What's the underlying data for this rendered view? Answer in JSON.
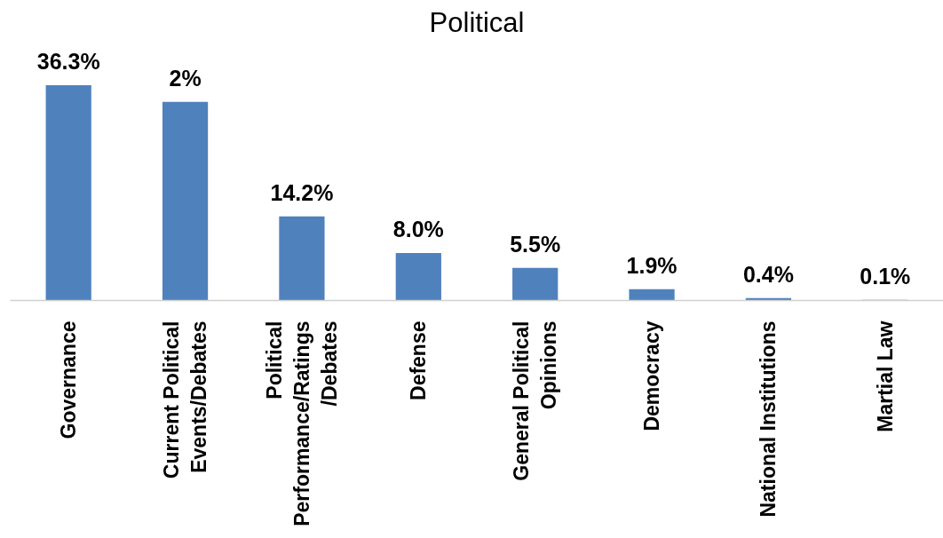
{
  "chart_data": {
    "type": "bar",
    "title": "Political",
    "categories": [
      "Governance",
      "Current Political\nEvents/Debates",
      "Political\nPerformance/Ratings\n/Debates",
      "Defense",
      "General Political\nOpinions",
      "Democracy",
      "National Institutions",
      "Martial Law"
    ],
    "values": [
      36.3,
      33.5,
      14.2,
      8.0,
      5.5,
      1.9,
      0.4,
      0.1
    ],
    "value_labels": [
      "36.3%",
      null,
      "14.2%",
      "8.0%",
      "5.5%",
      "1.9%",
      "0.4%",
      "0.1%"
    ],
    "annotations": [
      {
        "text": "2%",
        "x": "Current Political\nEvents/Debates",
        "y": 33.5
      }
    ],
    "color": "#4f81bd"
  }
}
